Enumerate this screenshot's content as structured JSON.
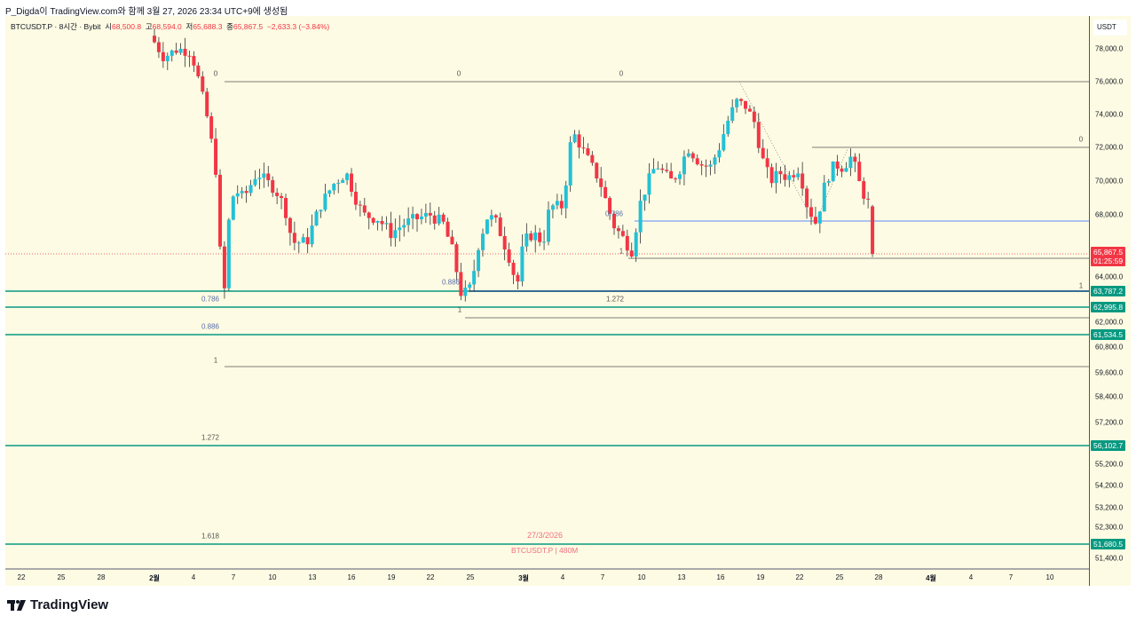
{
  "caption": "P_Digda이 TradingView.com와 함께 3월 27, 2026 23:34 UTC+9에 생성됨",
  "legend": {
    "symbol": "BTCUSDT.P · 8시간 · Bybit",
    "o_label": "시",
    "o": "68,500.8",
    "h_label": "고",
    "h": "68,594.0",
    "l_label": "저",
    "l": "65,688.3",
    "c_label": "종",
    "c": "65,867.5",
    "chg": "−2,633.3 (−3.84%)"
  },
  "axis": {
    "unit": "USDT",
    "ticks": [
      "78,000.0",
      "76,000.0",
      "74,000.0",
      "72,000.0",
      "70,000.0",
      "68,000.0",
      "64,000.0",
      "62,000.0",
      "60,800.0",
      "59,600.0",
      "58,400.0",
      "57,200.0",
      "55,200.0",
      "54,200.0",
      "53,200.0",
      "52,300.0",
      "51,400.0"
    ],
    "price_label": {
      "price": "65,867.5",
      "countdown": "01:25:59",
      "color": "#f23645"
    },
    "levels": [
      "63,787.2",
      "62,995.8",
      "61,534.5",
      "56,102.7",
      "51,680.5"
    ],
    "level_color": "#089981"
  },
  "xaxis": [
    "22",
    "25",
    "28",
    "2월",
    "4",
    "7",
    "10",
    "13",
    "16",
    "19",
    "22",
    "25",
    "3월",
    "4",
    "7",
    "10",
    "13",
    "16",
    "19",
    "22",
    "25",
    "28",
    "4월",
    "4",
    "7",
    "10"
  ],
  "fib_labels": [
    "0",
    "0",
    "0",
    "0",
    "0.786",
    "0.786",
    "0.886",
    "0.886",
    "1",
    "1",
    "1",
    "1",
    "1.272",
    "1.272",
    "1.618"
  ],
  "watermark": {
    "date": "27/3/2026",
    "symbol": "BTCUSDT.P | 480M"
  },
  "brand": "TradingView",
  "chart_data": {
    "type": "candlestick",
    "title": "BTCUSDT.P · 8시간 · Bybit",
    "timeframe": "8h",
    "ylabel": "USDT",
    "x_unit": "days since Feb 1 2026",
    "path": [
      [
        -0.3,
        78800
      ],
      [
        0.7,
        77500
      ],
      [
        1.8,
        78000
      ],
      [
        2.8,
        77800
      ],
      [
        3.4,
        76000
      ],
      [
        4.1,
        73500
      ],
      [
        4.7,
        70500
      ],
      [
        5.0,
        66000
      ],
      [
        5.3,
        63500
      ],
      [
        5.7,
        68000
      ],
      [
        6.1,
        69500
      ],
      [
        6.8,
        69000
      ],
      [
        7.8,
        70500
      ],
      [
        8.5,
        70000
      ],
      [
        9.2,
        69500
      ],
      [
        9.9,
        68500
      ],
      [
        10.5,
        66500
      ],
      [
        11.6,
        66500
      ],
      [
        12.6,
        68500
      ],
      [
        13.6,
        69800
      ],
      [
        14.6,
        70500
      ],
      [
        15.3,
        69000
      ],
      [
        15.9,
        68000
      ],
      [
        17.0,
        67800
      ],
      [
        18.0,
        67000
      ],
      [
        19.0,
        67500
      ],
      [
        20.0,
        67800
      ],
      [
        21.0,
        68000
      ],
      [
        22.0,
        67500
      ],
      [
        22.7,
        66000
      ],
      [
        23.4,
        63500
      ],
      [
        24.1,
        64000
      ],
      [
        24.7,
        66500
      ],
      [
        25.4,
        68000
      ],
      [
        26.1,
        67500
      ],
      [
        27.1,
        65500
      ],
      [
        27.6,
        64000
      ],
      [
        28.1,
        66500
      ],
      [
        28.8,
        67000
      ],
      [
        29.6,
        66500
      ],
      [
        30.1,
        68500
      ],
      [
        31.1,
        68500
      ],
      [
        31.8,
        73000
      ],
      [
        32.5,
        72000
      ],
      [
        33.2,
        71000
      ],
      [
        33.9,
        70000
      ],
      [
        34.9,
        67500
      ],
      [
        35.9,
        66500
      ],
      [
        36.4,
        66000
      ],
      [
        36.9,
        68500
      ],
      [
        37.6,
        70000
      ],
      [
        38.2,
        71000
      ],
      [
        39.3,
        70000
      ],
      [
        39.9,
        70500
      ],
      [
        40.6,
        72000
      ],
      [
        41.6,
        71000
      ],
      [
        42.3,
        70800
      ],
      [
        43.0,
        72000
      ],
      [
        43.6,
        73500
      ],
      [
        44.3,
        74800
      ],
      [
        45.0,
        74500
      ],
      [
        45.7,
        73500
      ],
      [
        46.2,
        71500
      ],
      [
        46.9,
        70000
      ],
      [
        47.6,
        70500
      ],
      [
        48.2,
        70200
      ],
      [
        49.1,
        70800
      ],
      [
        49.7,
        68500
      ],
      [
        50.4,
        67500
      ],
      [
        51.1,
        70000
      ],
      [
        51.8,
        71000
      ],
      [
        52.4,
        70800
      ],
      [
        53.1,
        71500
      ],
      [
        53.8,
        69500
      ],
      [
        54.5,
        68500
      ],
      [
        54.9,
        65867.5
      ]
    ],
    "last": {
      "open": 68500.8,
      "high": 68594.0,
      "low": 65688.3,
      "close": 65867.5
    },
    "horizontal_levels": [
      63787.2,
      62995.8,
      61534.5,
      56102.7,
      51680.5
    ],
    "up_color": "#22c1d6",
    "down_color": "#f23645"
  }
}
